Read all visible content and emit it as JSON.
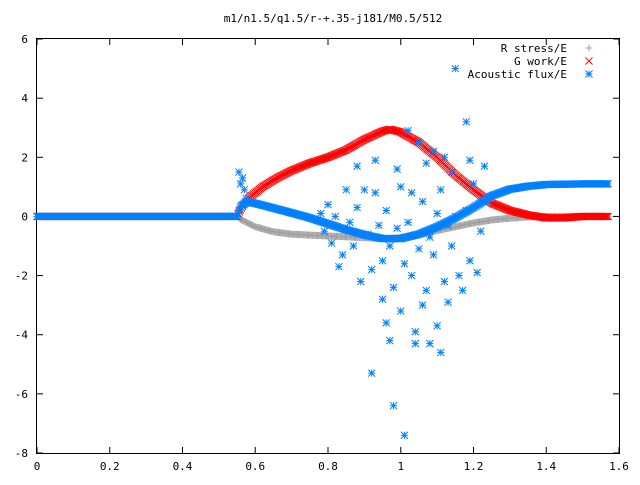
{
  "chart_data": {
    "type": "scatter",
    "title": "m1/n1.5/q1.5/r-+.35-j181/M0.5/512",
    "xlabel": "",
    "ylabel": "",
    "xlim": [
      0,
      1.6
    ],
    "ylim": [
      -8,
      6
    ],
    "grid": false,
    "legend_position": "top-right",
    "x_ticks": [
      "0",
      "0.2",
      "0.4",
      "0.6",
      "0.8",
      "1",
      "1.2",
      "1.4",
      "1.6"
    ],
    "y_ticks": [
      "6",
      "4",
      "2",
      "0",
      "-2",
      "-4",
      "-6",
      "-8"
    ],
    "series": [
      {
        "name": "R stress/E",
        "marker": "plus",
        "color": "#a0a0a0",
        "curve": [
          [
            0,
            0
          ],
          [
            0.55,
            0
          ],
          [
            0.56,
            -0.1
          ],
          [
            0.6,
            -0.35
          ],
          [
            0.65,
            -0.52
          ],
          [
            0.7,
            -0.6
          ],
          [
            0.8,
            -0.66
          ],
          [
            0.9,
            -0.72
          ],
          [
            0.96,
            -0.75
          ],
          [
            1.0,
            -0.72
          ],
          [
            1.05,
            -0.62
          ],
          [
            1.1,
            -0.48
          ],
          [
            1.15,
            -0.35
          ],
          [
            1.2,
            -0.22
          ],
          [
            1.25,
            -0.12
          ],
          [
            1.3,
            -0.06
          ],
          [
            1.35,
            -0.02
          ],
          [
            1.4,
            0
          ],
          [
            1.57,
            0
          ]
        ]
      },
      {
        "name": "G work/E",
        "marker": "cross",
        "color": "#ff0000",
        "curve": [
          [
            0,
            0
          ],
          [
            0.55,
            0
          ],
          [
            0.56,
            0.25
          ],
          [
            0.58,
            0.6
          ],
          [
            0.62,
            1.0
          ],
          [
            0.66,
            1.3
          ],
          [
            0.7,
            1.55
          ],
          [
            0.75,
            1.8
          ],
          [
            0.8,
            2.0
          ],
          [
            0.85,
            2.25
          ],
          [
            0.9,
            2.6
          ],
          [
            0.95,
            2.88
          ],
          [
            0.97,
            2.95
          ],
          [
            1.0,
            2.85
          ],
          [
            1.05,
            2.5
          ],
          [
            1.1,
            2.0
          ],
          [
            1.15,
            1.4
          ],
          [
            1.2,
            0.9
          ],
          [
            1.25,
            0.45
          ],
          [
            1.3,
            0.2
          ],
          [
            1.35,
            0.05
          ],
          [
            1.4,
            -0.05
          ],
          [
            1.45,
            -0.05
          ],
          [
            1.5,
            0
          ],
          [
            1.57,
            0
          ]
        ]
      },
      {
        "name": "Acoustic flux/E",
        "marker": "star",
        "color": "#0080ff",
        "curve": [
          [
            0,
            0
          ],
          [
            0.55,
            0
          ],
          [
            0.56,
            0.35
          ],
          [
            0.58,
            0.5
          ],
          [
            0.62,
            0.38
          ],
          [
            0.66,
            0.25
          ],
          [
            0.7,
            0.12
          ],
          [
            0.75,
            -0.05
          ],
          [
            0.8,
            -0.25
          ],
          [
            0.85,
            -0.45
          ],
          [
            0.9,
            -0.62
          ],
          [
            0.95,
            -0.75
          ],
          [
            1.0,
            -0.75
          ],
          [
            1.05,
            -0.6
          ],
          [
            1.1,
            -0.35
          ],
          [
            1.15,
            -0.05
          ],
          [
            1.2,
            0.3
          ],
          [
            1.25,
            0.7
          ],
          [
            1.3,
            0.92
          ],
          [
            1.35,
            1.02
          ],
          [
            1.4,
            1.08
          ],
          [
            1.5,
            1.1
          ],
          [
            1.57,
            1.1
          ]
        ],
        "scatter": [
          [
            0.555,
            1.5
          ],
          [
            0.56,
            1.1
          ],
          [
            0.565,
            1.3
          ],
          [
            0.57,
            0.9
          ],
          [
            0.575,
            0.6
          ],
          [
            0.78,
            0.1
          ],
          [
            0.79,
            -0.5
          ],
          [
            0.8,
            0.4
          ],
          [
            0.81,
            -0.9
          ],
          [
            0.82,
            0.0
          ],
          [
            0.83,
            -1.7
          ],
          [
            0.84,
            -1.3
          ],
          [
            0.85,
            0.9
          ],
          [
            0.86,
            -0.2
          ],
          [
            0.87,
            -1.0
          ],
          [
            0.88,
            1.7
          ],
          [
            0.88,
            0.3
          ],
          [
            0.89,
            -2.2
          ],
          [
            0.9,
            0.9
          ],
          [
            0.91,
            -0.6
          ],
          [
            0.92,
            -1.8
          ],
          [
            0.92,
            -5.3
          ],
          [
            0.93,
            1.9
          ],
          [
            0.93,
            0.8
          ],
          [
            0.94,
            -0.3
          ],
          [
            0.95,
            -2.8
          ],
          [
            0.95,
            -1.5
          ],
          [
            0.96,
            0.2
          ],
          [
            0.96,
            -3.6
          ],
          [
            0.97,
            -1.0
          ],
          [
            0.97,
            -4.2
          ],
          [
            0.98,
            -6.4
          ],
          [
            0.98,
            -2.4
          ],
          [
            0.99,
            1.6
          ],
          [
            0.99,
            -0.4
          ],
          [
            1.0,
            -3.2
          ],
          [
            1.0,
            1.0
          ],
          [
            1.01,
            -7.4
          ],
          [
            1.01,
            -1.6
          ],
          [
            1.02,
            2.9
          ],
          [
            1.02,
            -0.2
          ],
          [
            1.03,
            -2.0
          ],
          [
            1.03,
            0.8
          ],
          [
            1.04,
            -3.9
          ],
          [
            1.04,
            -4.3
          ],
          [
            1.05,
            -1.1
          ],
          [
            1.05,
            2.5
          ],
          [
            1.06,
            0.5
          ],
          [
            1.06,
            -3.0
          ],
          [
            1.07,
            1.8
          ],
          [
            1.07,
            -2.5
          ],
          [
            1.08,
            -0.7
          ],
          [
            1.08,
            -4.3
          ],
          [
            1.09,
            2.2
          ],
          [
            1.09,
            -1.3
          ],
          [
            1.1,
            0.1
          ],
          [
            1.1,
            -3.7
          ],
          [
            1.11,
            -4.6
          ],
          [
            1.11,
            0.9
          ],
          [
            1.12,
            -2.2
          ],
          [
            1.12,
            2.0
          ],
          [
            1.13,
            -0.3
          ],
          [
            1.13,
            -2.9
          ],
          [
            1.14,
            1.5
          ],
          [
            1.14,
            -1.0
          ],
          [
            1.15,
            0.0
          ],
          [
            1.15,
            5.0
          ],
          [
            1.16,
            -2.0
          ],
          [
            1.17,
            -2.5
          ],
          [
            1.18,
            0.2
          ],
          [
            1.18,
            3.2
          ],
          [
            1.19,
            -1.5
          ],
          [
            1.19,
            1.9
          ],
          [
            1.2,
            1.1
          ],
          [
            1.21,
            -1.9
          ],
          [
            1.22,
            -0.5
          ],
          [
            1.23,
            1.7
          ],
          [
            1.24,
            0.5
          ]
        ]
      }
    ]
  }
}
